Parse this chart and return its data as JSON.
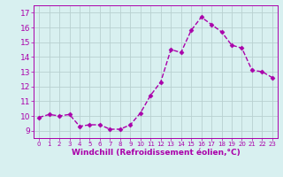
{
  "x": [
    0,
    1,
    2,
    3,
    4,
    5,
    6,
    7,
    8,
    9,
    10,
    11,
    12,
    13,
    14,
    15,
    16,
    17,
    18,
    19,
    20,
    21,
    22,
    23
  ],
  "y": [
    9.9,
    10.1,
    10.0,
    10.1,
    9.3,
    9.4,
    9.4,
    9.1,
    9.1,
    9.4,
    10.2,
    11.4,
    12.3,
    14.5,
    14.3,
    15.8,
    16.7,
    16.2,
    15.7,
    14.8,
    14.6,
    13.1,
    13.0,
    12.6
  ],
  "line_color": "#AA00AA",
  "marker": "D",
  "markersize": 2.5,
  "linewidth": 1.0,
  "bg_color": "#D8F0F0",
  "grid_color": "#B8D0D0",
  "xlabel": "Windchill (Refroidissement éolien,°C)",
  "xlabel_fontsize": 6.5,
  "tick_fontsize": 6.5,
  "ylim": [
    8.5,
    17.5
  ],
  "xlim": [
    -0.5,
    23.5
  ],
  "yticks": [
    9,
    10,
    11,
    12,
    13,
    14,
    15,
    16,
    17
  ],
  "xticks": [
    0,
    1,
    2,
    3,
    4,
    5,
    6,
    7,
    8,
    9,
    10,
    11,
    12,
    13,
    14,
    15,
    16,
    17,
    18,
    19,
    20,
    21,
    22,
    23
  ]
}
